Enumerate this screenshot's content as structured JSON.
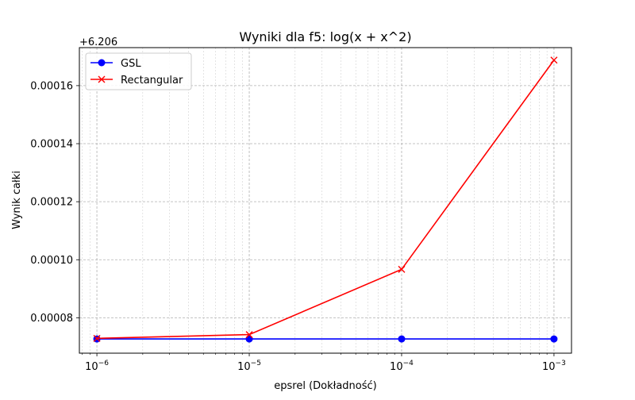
{
  "chart_data": {
    "type": "line",
    "title": "Wyniki dla f5: log(x + x^2)",
    "xlabel": "epsrel (Dokładność)",
    "ylabel": "Wynik całki",
    "x_scale": "log",
    "x_ticks": [
      {
        "value": 1e-06,
        "base": "10",
        "exp": "−6"
      },
      {
        "value": 1e-05,
        "base": "10",
        "exp": "−5"
      },
      {
        "value": 0.0001,
        "base": "10",
        "exp": "−4"
      },
      {
        "value": 0.001,
        "base": "10",
        "exp": "−3"
      }
    ],
    "y_offset_label": "+6.206",
    "y_ticks": [
      "0.00008",
      "0.00010",
      "0.00012",
      "0.00014",
      "0.00016"
    ],
    "y_offset": 6.206,
    "ylim": [
      6.2060678,
      6.2061731
    ],
    "grid": true,
    "grid_minor": true,
    "legend_position": "upper left",
    "x": [
      1e-06,
      1e-05,
      0.0001,
      0.001
    ],
    "series": [
      {
        "name": "GSL",
        "color": "#0000ff",
        "marker": "circle",
        "values": [
          6.2060727,
          6.2060727,
          6.2060727,
          6.2060727
        ]
      },
      {
        "name": "Rectangular",
        "color": "#ff0000",
        "marker": "x",
        "values": [
          6.2060729,
          6.2060742,
          6.2060967,
          6.2061688
        ]
      }
    ]
  }
}
